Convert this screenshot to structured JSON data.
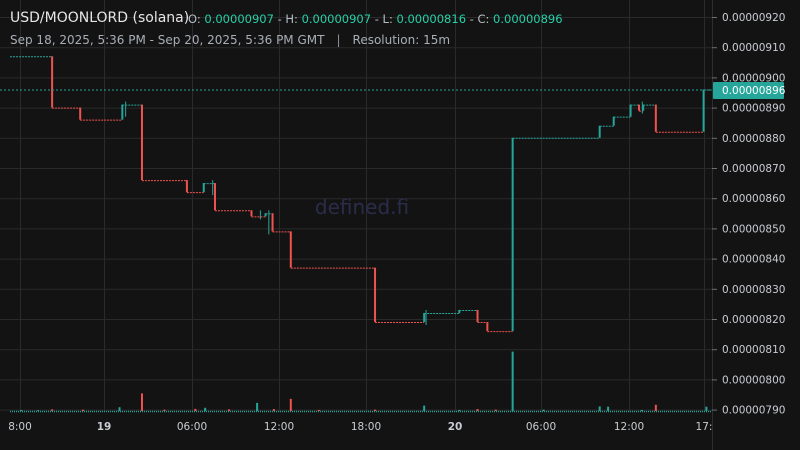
{
  "header": {
    "title": "USD/MOONLORD (solana)",
    "ohlc": {
      "o_label": "O:",
      "o": "0.00000907",
      "h_label": "H:",
      "h": "0.00000907",
      "l_label": "L:",
      "l": "0.00000816",
      "c_label": "C:",
      "c": "0.00000896"
    },
    "range": "Sep 18, 2025, 5:36 PM - Sep 20, 2025, 5:36 PM GMT",
    "separator": "|",
    "resolution": "Resolution: 15m"
  },
  "watermark": "defined.fi",
  "colors": {
    "up": "#26a69a",
    "down": "#ef5350",
    "background": "#131313",
    "grid": "#2a2a2a",
    "price_tag": "#26a69a"
  },
  "chart_data": {
    "type": "candlestick",
    "ylim": [
      7.88e-06,
      9.24e-06
    ],
    "y_ticks": [
      "0.00000790",
      "0.00000800",
      "0.00000810",
      "0.00000820",
      "0.00000830",
      "0.00000840",
      "0.00000850",
      "0.00000860",
      "0.00000870",
      "0.00000880",
      "0.00000890",
      "0.00000900",
      "0.00000910",
      "0.00000920"
    ],
    "x_ticks": [
      {
        "label": "8:00",
        "bold": false
      },
      {
        "label": "19",
        "bold": true
      },
      {
        "label": "06:00",
        "bold": false
      },
      {
        "label": "12:00",
        "bold": false
      },
      {
        "label": "18:00",
        "bold": false
      },
      {
        "label": "20",
        "bold": true
      },
      {
        "label": "06:00",
        "bold": false
      },
      {
        "label": "12:00",
        "bold": false
      },
      {
        "label": "17:",
        "bold": false
      }
    ],
    "last_price": "0.00000896",
    "segments": [
      {
        "x0": 0,
        "x1": 3,
        "v": 9.07e-06,
        "dir": "up"
      },
      {
        "x0": 3,
        "x1": 5,
        "v": 8.9e-06,
        "dir": "down"
      },
      {
        "x0": 5,
        "x1": 8,
        "v": 8.86e-06,
        "dir": "down"
      },
      {
        "x0": 8,
        "x1": 9.4,
        "v": 8.91e-06,
        "dir": "up"
      },
      {
        "x0": 9.4,
        "x1": 12.6,
        "v": 8.66e-06,
        "dir": "down"
      },
      {
        "x0": 12.6,
        "x1": 13.8,
        "v": 8.62e-06,
        "dir": "down"
      },
      {
        "x0": 13.8,
        "x1": 14.6,
        "v": 8.65e-06,
        "dir": "up"
      },
      {
        "x0": 14.6,
        "x1": 17.2,
        "v": 8.56e-06,
        "dir": "down"
      },
      {
        "x0": 17.2,
        "x1": 18.2,
        "v": 8.54e-06,
        "dir": "down"
      },
      {
        "x0": 18.2,
        "x1": 18.7,
        "v": 8.55e-06,
        "dir": "up"
      },
      {
        "x0": 18.7,
        "x1": 20,
        "v": 8.49e-06,
        "dir": "down"
      },
      {
        "x0": 20,
        "x1": 26,
        "v": 8.37e-06,
        "dir": "down"
      },
      {
        "x0": 26,
        "x1": 29.5,
        "v": 8.19e-06,
        "dir": "down"
      },
      {
        "x0": 29.5,
        "x1": 32,
        "v": 8.22e-06,
        "dir": "up"
      },
      {
        "x0": 32,
        "x1": 33.3,
        "v": 8.23e-06,
        "dir": "up"
      },
      {
        "x0": 33.3,
        "x1": 34,
        "v": 8.19e-06,
        "dir": "down"
      },
      {
        "x0": 34,
        "x1": 35.8,
        "v": 8.16e-06,
        "dir": "down"
      },
      {
        "x0": 35.8,
        "x1": 42,
        "v": 8.8e-06,
        "dir": "up"
      },
      {
        "x0": 42,
        "x1": 43,
        "v": 8.84e-06,
        "dir": "up"
      },
      {
        "x0": 43,
        "x1": 44.2,
        "v": 8.87e-06,
        "dir": "up"
      },
      {
        "x0": 44.2,
        "x1": 44.8,
        "v": 8.91e-06,
        "dir": "up"
      },
      {
        "x0": 44.8,
        "x1": 45.1,
        "v": 8.89e-06,
        "dir": "down"
      },
      {
        "x0": 45.1,
        "x1": 46,
        "v": 8.91e-06,
        "dir": "up"
      },
      {
        "x0": 46,
        "x1": 49.4,
        "v": 8.82e-06,
        "dir": "down"
      },
      {
        "x0": 49.4,
        "x1": 50,
        "v": 8.96e-06,
        "dir": "up"
      }
    ],
    "wicks": [
      {
        "x": 8.2,
        "high": 8.92e-06,
        "low": 8.87e-06
      },
      {
        "x": 14.4,
        "high": 8.66e-06,
        "low": 8.61e-06
      },
      {
        "x": 17.8,
        "high": 8.56e-06,
        "low": 8.53e-06
      },
      {
        "x": 18.4,
        "high": 8.56e-06,
        "low": 8.48e-06
      },
      {
        "x": 29.6,
        "high": 8.23e-06,
        "low": 8.18e-06
      },
      {
        "x": 45,
        "high": 8.92e-06,
        "low": 8.88e-06
      }
    ],
    "volumes": [
      {
        "x": 0.8,
        "h": 0.4,
        "dir": "up"
      },
      {
        "x": 2.0,
        "h": 0.3,
        "dir": "up"
      },
      {
        "x": 3.0,
        "h": 0.6,
        "dir": "down"
      },
      {
        "x": 5.2,
        "h": 0.5,
        "dir": "down"
      },
      {
        "x": 7.8,
        "h": 1.4,
        "dir": "up"
      },
      {
        "x": 9.4,
        "h": 6.5,
        "dir": "down"
      },
      {
        "x": 11.0,
        "h": 0.5,
        "dir": "down"
      },
      {
        "x": 13.2,
        "h": 0.8,
        "dir": "down"
      },
      {
        "x": 13.9,
        "h": 1.2,
        "dir": "up"
      },
      {
        "x": 15.6,
        "h": 0.6,
        "dir": "down"
      },
      {
        "x": 17.6,
        "h": 3.0,
        "dir": "up"
      },
      {
        "x": 18.8,
        "h": 0.7,
        "dir": "down"
      },
      {
        "x": 20.0,
        "h": 4.5,
        "dir": "down"
      },
      {
        "x": 22.0,
        "h": 0.4,
        "dir": "down"
      },
      {
        "x": 26.0,
        "h": 0.5,
        "dir": "down"
      },
      {
        "x": 29.5,
        "h": 2.0,
        "dir": "up"
      },
      {
        "x": 32.0,
        "h": 0.4,
        "dir": "up"
      },
      {
        "x": 33.3,
        "h": 0.7,
        "dir": "down"
      },
      {
        "x": 34.6,
        "h": 0.5,
        "dir": "down"
      },
      {
        "x": 35.8,
        "h": 22.0,
        "dir": "up"
      },
      {
        "x": 38.0,
        "h": 0.5,
        "dir": "up"
      },
      {
        "x": 42.0,
        "h": 1.7,
        "dir": "up"
      },
      {
        "x": 42.6,
        "h": 1.6,
        "dir": "up"
      },
      {
        "x": 45.0,
        "h": 0.4,
        "dir": "up"
      },
      {
        "x": 46.0,
        "h": 2.3,
        "dir": "down"
      },
      {
        "x": 49.6,
        "h": 1.6,
        "dir": "up"
      }
    ]
  }
}
